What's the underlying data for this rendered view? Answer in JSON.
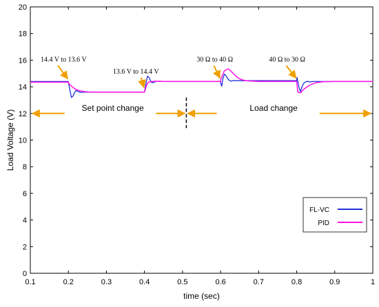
{
  "chart_data": {
    "type": "line",
    "xlabel": "time (sec)",
    "ylabel": "Load Voltage (V)",
    "xlim": [
      0.1,
      1.0
    ],
    "ylim": [
      0,
      20
    ],
    "x_ticks": [
      "0.1",
      "0.2",
      "0.3",
      "0.4",
      "0.5",
      "0.6",
      "0.7",
      "0.8",
      "0.9",
      "1"
    ],
    "y_ticks": [
      "0",
      "2",
      "4",
      "6",
      "8",
      "10",
      "12",
      "14",
      "16",
      "18",
      "20"
    ],
    "grid": false,
    "legend_position": "bottom-right",
    "series": [
      {
        "name": "FL-VC",
        "color": "#1f2fd8",
        "x": [
          0.1,
          0.2,
          0.201,
          0.204,
          0.208,
          0.212,
          0.216,
          0.22,
          0.226,
          0.232,
          0.24,
          0.25,
          0.3,
          0.4,
          0.401,
          0.404,
          0.408,
          0.412,
          0.416,
          0.42,
          0.426,
          0.432,
          0.44,
          0.45,
          0.5,
          0.6,
          0.601,
          0.603,
          0.606,
          0.61,
          0.614,
          0.618,
          0.622,
          0.628,
          0.634,
          0.642,
          0.65,
          0.8,
          0.801,
          0.803,
          0.806,
          0.81,
          0.814,
          0.818,
          0.822,
          0.828,
          0.834,
          0.842,
          0.85,
          1.0
        ],
        "y": [
          14.4,
          14.4,
          14.2,
          13.75,
          13.2,
          13.3,
          13.55,
          13.72,
          13.65,
          13.58,
          13.6,
          13.6,
          13.6,
          13.6,
          13.8,
          14.3,
          14.8,
          14.7,
          14.45,
          14.3,
          14.35,
          14.42,
          14.4,
          14.4,
          14.4,
          14.4,
          14.2,
          14.05,
          14.6,
          14.95,
          14.85,
          14.65,
          14.5,
          14.42,
          14.47,
          14.46,
          14.46,
          14.46,
          14.7,
          14.4,
          13.95,
          13.65,
          14.0,
          14.25,
          14.35,
          14.42,
          14.37,
          14.4,
          14.4,
          14.4
        ]
      },
      {
        "name": "PID",
        "color": "#ff10e8",
        "x": [
          0.1,
          0.2,
          0.201,
          0.21,
          0.22,
          0.23,
          0.24,
          0.25,
          0.26,
          0.27,
          0.28,
          0.3,
          0.4,
          0.401,
          0.405,
          0.41,
          0.42,
          0.43,
          0.44,
          0.45,
          0.5,
          0.6,
          0.601,
          0.61,
          0.62,
          0.63,
          0.64,
          0.65,
          0.66,
          0.67,
          0.7,
          0.8,
          0.801,
          0.803,
          0.81,
          0.82,
          0.83,
          0.84,
          0.85,
          0.86,
          0.87,
          0.9,
          1.0
        ],
        "y": [
          14.35,
          14.35,
          14.25,
          14.0,
          13.8,
          13.7,
          13.65,
          13.62,
          13.6,
          13.6,
          13.6,
          13.6,
          13.6,
          13.7,
          14.1,
          14.35,
          14.4,
          14.42,
          14.42,
          14.4,
          14.4,
          14.4,
          14.6,
          15.2,
          15.35,
          15.1,
          14.8,
          14.6,
          14.5,
          14.45,
          14.4,
          14.4,
          14.1,
          13.6,
          13.55,
          13.85,
          14.05,
          14.2,
          14.3,
          14.35,
          14.38,
          14.4,
          14.4
        ]
      }
    ],
    "annotations": [
      {
        "text": "14.4 V to 13.6 V",
        "x": 0.1,
        "y": 15.9,
        "arrow_to": [
          0.2,
          14.45
        ]
      },
      {
        "text": "13.6 V to 14.4 V",
        "x": 0.29,
        "y": 15.0,
        "arrow_to": [
          0.4,
          13.8
        ]
      },
      {
        "text": "30 Ω to 40 Ω",
        "x": 0.51,
        "y": 15.9,
        "arrow_to": [
          0.6,
          14.5
        ]
      },
      {
        "text": "40 Ω to 30 Ω",
        "x": 0.7,
        "y": 15.9,
        "arrow_to": [
          0.8,
          14.5
        ]
      },
      {
        "text": "Set point change",
        "x": 0.235,
        "y": 12.15
      },
      {
        "text": "Load change",
        "x": 0.74,
        "y": 12.15
      }
    ],
    "divider_x": 0.51
  }
}
